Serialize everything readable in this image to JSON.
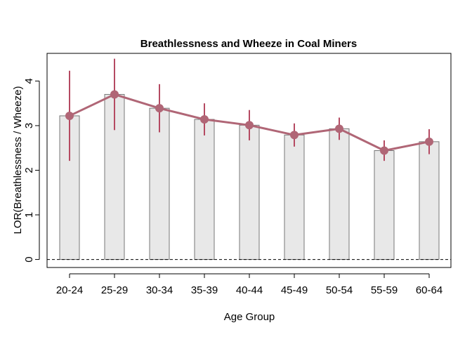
{
  "chart_data": {
    "type": "bar",
    "title": "Breathlessness and Wheeze in Coal Miners",
    "xlabel": "Age Group",
    "ylabel": "LOR(Breathlessness / Wheeze)",
    "categories": [
      "20-24",
      "25-29",
      "30-34",
      "35-39",
      "40-44",
      "45-49",
      "50-54",
      "55-59",
      "60-64"
    ],
    "values": [
      3.22,
      3.7,
      3.39,
      3.14,
      3.01,
      2.79,
      2.93,
      2.44,
      2.64
    ],
    "error_lower": [
      2.21,
      2.9,
      2.85,
      2.78,
      2.67,
      2.53,
      2.68,
      2.21,
      2.36
    ],
    "error_upper": [
      4.23,
      4.5,
      3.93,
      3.5,
      3.35,
      3.05,
      3.18,
      2.67,
      2.92
    ],
    "ylim": [
      -0.18,
      4.62
    ],
    "yticks": [
      0,
      1,
      2,
      3,
      4
    ],
    "reference_line": 0,
    "grid": false,
    "colors": {
      "bar_fill": "#e8e8e8",
      "bar_stroke": "#777777",
      "line": "#b06676",
      "point": "#b06676",
      "error": "#b54a62"
    }
  }
}
